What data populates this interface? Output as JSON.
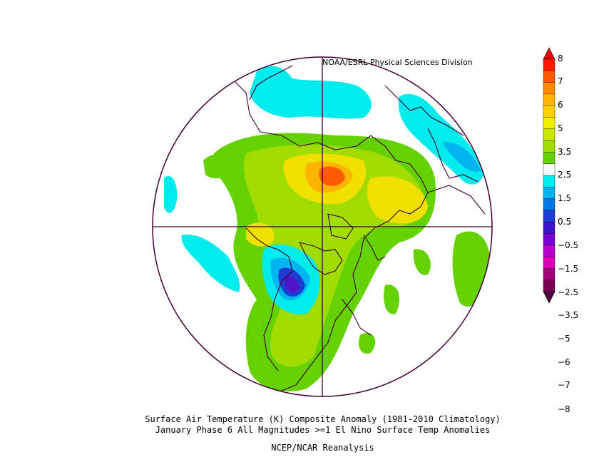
{
  "credit": "NOAA/ESRL Physical Sciences Division",
  "caption": {
    "line1": "Surface Air Temperature (K) Composite Anomaly (1981-2010 Climatology)",
    "line2": "January Phase 6 All Magnitudes >=1 El Nino Surface Temp Anomalies",
    "line3": "NCEP/NCAR Reanalysis"
  },
  "colorbar": {
    "labels": [
      "8",
      "7",
      "6",
      "5",
      "3.5",
      "2.5",
      "1.5",
      "0.5",
      "−0.5",
      "−1.5",
      "−2.5",
      "−3.5",
      "−5",
      "−6",
      "−7",
      "−8"
    ],
    "colors": [
      "#ff1a00",
      "#ff5a00",
      "#ff8c00",
      "#ffb400",
      "#ffd000",
      "#f0f000",
      "#c8e600",
      "#a0dc00",
      "#64d200",
      "#ffffff",
      "#00ebeb",
      "#00b4f0",
      "#0078e6",
      "#1e3cd2",
      "#3c14c8",
      "#7800d2",
      "#b400c8",
      "#dc00b4",
      "#a0007a",
      "#780050"
    ],
    "tip_top": "#e60000",
    "tip_bottom": "#500040"
  },
  "map_colors": {
    "outline": "#400030",
    "pos_light": "#64d200",
    "pos_mid": "#a0dc00",
    "pos_yellow": "#f0e000",
    "pos_orange": "#ffb400",
    "pos_red": "#ff5a00",
    "neg_light": "#00ebeb",
    "neg_mid": "#00b4f0",
    "neg_blue": "#1e3cd2",
    "neg_purple": "#5014c8"
  }
}
